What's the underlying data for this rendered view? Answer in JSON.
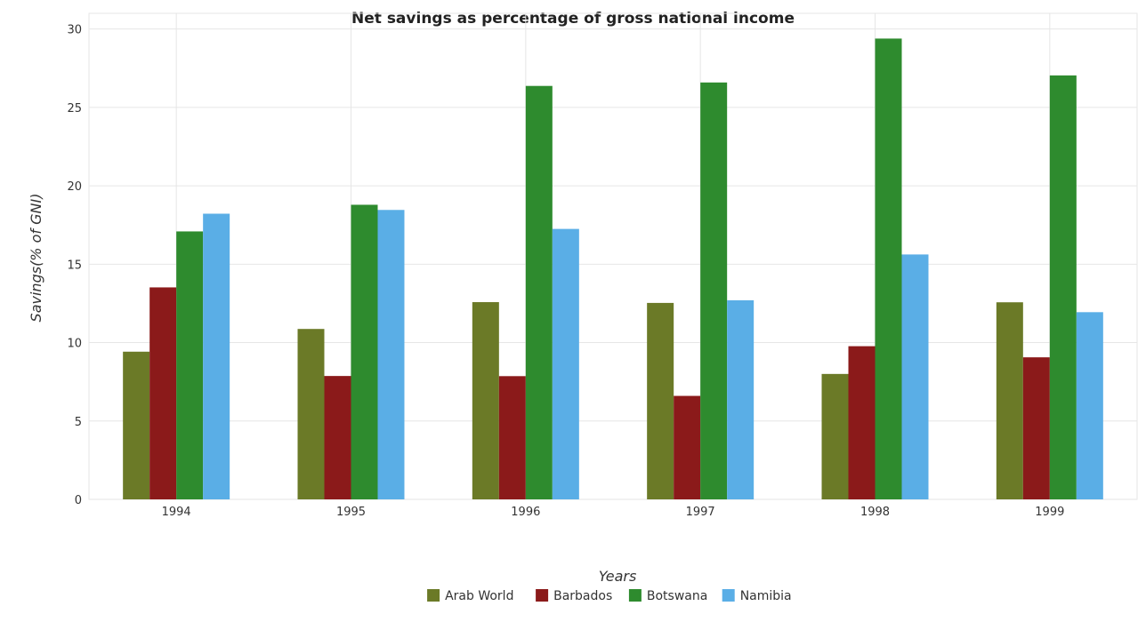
{
  "chart_data": {
    "type": "bar",
    "title": "Net savings as percentage of gross national income",
    "xlabel": "Years",
    "ylabel": "Savings(% of GNI)",
    "categories": [
      "1994",
      "1995",
      "1996",
      "1997",
      "1998",
      "1999"
    ],
    "ylim": [
      0,
      31
    ],
    "yticks": [
      0,
      5,
      10,
      15,
      20,
      25,
      30
    ],
    "grid": true,
    "legend_position": "bottom",
    "series": [
      {
        "name": "Arab World",
        "color": "#6b7a27",
        "values": [
          9.42,
          10.87,
          12.58,
          12.53,
          8.0,
          12.57
        ]
      },
      {
        "name": "Barbados",
        "color": "#8b1a1a",
        "values": [
          13.52,
          7.87,
          7.86,
          6.6,
          9.77,
          9.06
        ]
      },
      {
        "name": "Botswana",
        "color": "#2e8b2e",
        "values": [
          17.09,
          18.79,
          26.37,
          26.59,
          29.39,
          27.04
        ]
      },
      {
        "name": "Namibia",
        "color": "#5aaee6",
        "values": [
          18.22,
          18.46,
          17.25,
          12.7,
          15.62,
          11.94
        ]
      }
    ]
  }
}
